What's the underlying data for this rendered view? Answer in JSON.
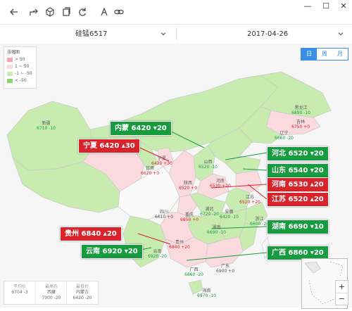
{
  "toolbar": {
    "icons": [
      "back-arrow-icon",
      "share-icon",
      "cube-icon",
      "copy-icon",
      "refresh-icon",
      "text-icon",
      "link-icon"
    ],
    "window": {
      "minimize": "—",
      "maximize": "☐",
      "close": "✕"
    }
  },
  "selectors": {
    "product": "硅锰6517",
    "date": "2017-04-26"
  },
  "legend": {
    "title": "涨幅图",
    "rows": [
      {
        "label": "> 50",
        "color": "#f7a3a8"
      },
      {
        "label": "1 ~ 50",
        "color": "#fadadd"
      },
      {
        "label": "-1 ~ -50",
        "color": "#c8ecb0"
      },
      {
        "label": "< -50",
        "color": "#8fd46c"
      }
    ]
  },
  "period": {
    "day": "日",
    "week": "周",
    "month": "月"
  },
  "provinces": [
    {
      "name": "黑龙江",
      "value": "6890 -10"
    },
    {
      "name": "吉林",
      "value": "6750 +0"
    },
    {
      "name": "辽宁",
      "value": "6660 -20"
    },
    {
      "name": "新疆",
      "value": "6710 -10"
    },
    {
      "name": "宁夏",
      "value": "6420 +30"
    },
    {
      "name": "陕西",
      "value": "6520 +0"
    },
    {
      "name": "山西",
      "value": "6520 -10"
    },
    {
      "name": "甘肃",
      "value": "6620 +0"
    },
    {
      "name": "河南",
      "value": "6530 +20"
    },
    {
      "name": "江苏",
      "value": "6520 +20"
    },
    {
      "name": "安徽",
      "value": "6420 -10"
    },
    {
      "name": "湖北",
      "value": "6720 -20"
    },
    {
      "name": "湖南",
      "value": "6690 -10"
    },
    {
      "name": "浙江",
      "value": "6600 -20"
    },
    {
      "name": "四川",
      "value": "6610 +0"
    },
    {
      "name": "重庆",
      "value": "6850 +0"
    },
    {
      "name": "贵州",
      "value": "6840 +20"
    },
    {
      "name": "云南",
      "value": "6920 -20"
    },
    {
      "name": "广东",
      "value": "6900 +0"
    },
    {
      "name": "广西",
      "value": "6860 -20"
    },
    {
      "name": "海南",
      "value": "6970 -10"
    }
  ],
  "callouts": [
    {
      "text": "内蒙 6420 ▾20",
      "tone": "g"
    },
    {
      "text": "宁夏 6420 ▴30",
      "tone": "r"
    },
    {
      "text": "河北 6520 ▾20",
      "tone": "g"
    },
    {
      "text": "山东 6540 ▾20",
      "tone": "g"
    },
    {
      "text": "河南 6530 ▴20",
      "tone": "r"
    },
    {
      "text": "江苏 6520 ▴20",
      "tone": "r"
    },
    {
      "text": "湖南 6690 ▾10",
      "tone": "g"
    },
    {
      "text": "贵州 6840 ▴20",
      "tone": "r"
    },
    {
      "text": "云南 6920 ▾20",
      "tone": "g"
    },
    {
      "text": "广西 6860 ▾20",
      "tone": "g"
    }
  ],
  "stats": [
    {
      "label": "平均价",
      "line1": "6704 -3",
      "line2": ""
    },
    {
      "label": "最高价",
      "line1": "西藏",
      "line2": "7000 -20"
    },
    {
      "label": "最低价",
      "line1": "内蒙古",
      "line2": "6420 -20"
    }
  ],
  "zoom": {
    "in": "+",
    "out": "−"
  }
}
